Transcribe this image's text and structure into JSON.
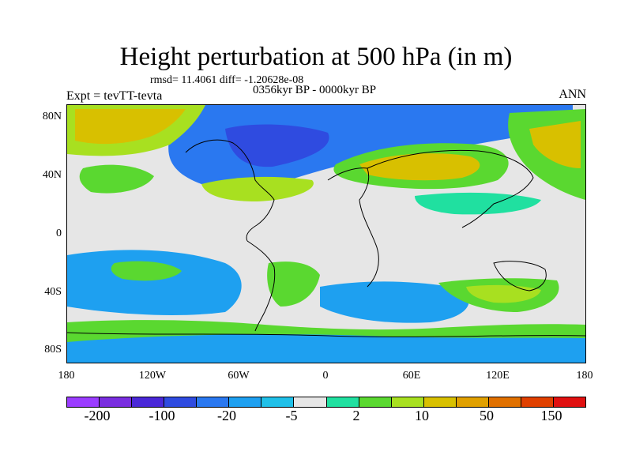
{
  "title": "Height perturbation at 500 hPa (in m)",
  "stats": "rmsd= 11.4061 diff= -1.20628e-08",
  "period": "0356kyr BP - 0000kyr BP",
  "experiment": "Expt = tevTT-tevta",
  "season": "ANN",
  "axes": {
    "lat_ticks": [
      "80N",
      "40N",
      "0",
      "40S",
      "80S"
    ],
    "lon_ticks": [
      "180",
      "120W",
      "60W",
      "0",
      "60E",
      "120E",
      "180"
    ]
  },
  "colorbar": {
    "colors": [
      "#9b3dff",
      "#7a2ee0",
      "#4a28d8",
      "#2f4be0",
      "#2a78f0",
      "#1ea0f0",
      "#20c0e8",
      "#e6e6e6",
      "#20e0a0",
      "#5ad830",
      "#a8e020",
      "#d8c000",
      "#e0a000",
      "#e07000",
      "#e04000",
      "#e01010"
    ],
    "labels": [
      "-200",
      "-100",
      "-20",
      "-5",
      "2",
      "10",
      "50",
      "150"
    ]
  }
}
